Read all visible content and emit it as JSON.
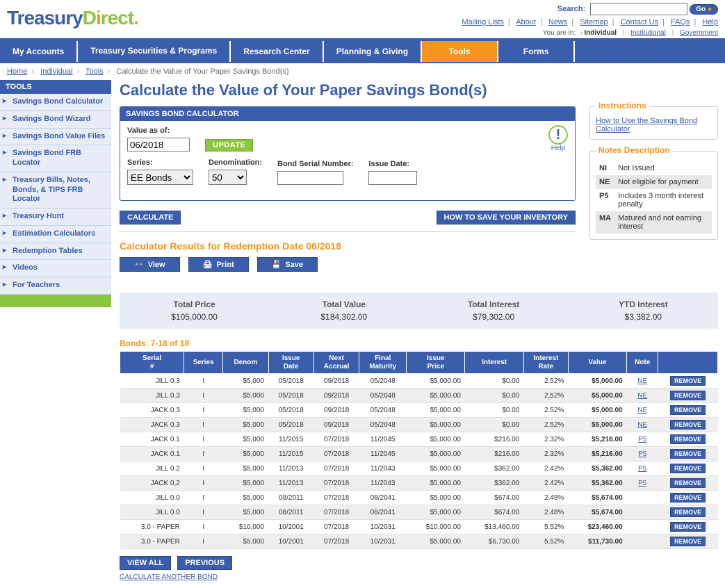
{
  "search": {
    "label": "Search:",
    "go": "Go"
  },
  "toplinks": [
    "Mailing Lists",
    "About",
    "News",
    "Sitemap",
    "Contact Us",
    "FAQs",
    "Help"
  ],
  "youarein": {
    "label": "You are in:",
    "current": "Individual",
    "others": [
      "Institutional",
      "Government"
    ]
  },
  "nav": [
    "My Accounts",
    "Treasury Securities & Programs",
    "Research Center",
    "Planning & Giving",
    "Tools",
    "Forms"
  ],
  "nav_active": 4,
  "breadcrumb": {
    "links": [
      "Home",
      "Individual",
      "Tools"
    ],
    "current": "Calculate the Value of Your Paper Savings Bond(s)"
  },
  "sidebar": {
    "title": "TOOLS",
    "items": [
      "Savings Bond Calculator",
      "Savings Bond Wizard",
      "Savings Bond Value Files",
      "Savings Bond FRB Locator",
      "Treasury Bills, Notes, Bonds, & TIPS FRB Locator",
      "Treasury Hunt",
      "Estimation Calculators",
      "Redemption Tables",
      "Videos",
      "For Teachers"
    ]
  },
  "page_title": "Calculate the Value of Your Paper Savings Bond(s)",
  "calc": {
    "header": "SAVINGS BOND CALCULATOR",
    "value_as_of_label": "Value as of:",
    "value_as_of": "06/2018",
    "update_btn": "UPDATE",
    "series_label": "Series:",
    "series_value": "EE Bonds",
    "denom_label": "Denomination:",
    "denom_value": "50",
    "serial_label": "Bond Serial Number:",
    "serial_value": "",
    "issue_label": "Issue Date:",
    "issue_value": "",
    "calculate_btn": "CALCULATE",
    "howto_btn": "HOW TO SAVE YOUR INVENTORY",
    "help_label": "Help"
  },
  "results_title": "Calculator Results for Redemption Date 06/2018",
  "tools": {
    "view": "View",
    "print": "Print",
    "save": "Save"
  },
  "instructions": {
    "title": "Instructions",
    "link": "How to Use the Savings Bond Calculator"
  },
  "notes": {
    "title": "Notes Description",
    "rows": [
      {
        "code": "NI",
        "desc": "Not Issued"
      },
      {
        "code": "NE",
        "desc": "Not eligible for payment"
      },
      {
        "code": "P5",
        "desc": "Includes 3 month interest penalty"
      },
      {
        "code": "MA",
        "desc": "Matured and not earning interest"
      }
    ]
  },
  "totals": {
    "headers": [
      "Total Price",
      "Total Value",
      "Total Interest",
      "YTD Interest"
    ],
    "values": [
      "$105,000.00",
      "$184,302.00",
      "$79,302.00",
      "$3,382.00"
    ]
  },
  "bonds_count": "Bonds: 7-18 of 18",
  "bond_headers": [
    "Serial #",
    "Series",
    "Denom",
    "Issue Date",
    "Next Accrual",
    "Final Maturity",
    "Issue Price",
    "Interest",
    "Interest Rate",
    "Value",
    "Note",
    ""
  ],
  "bonds": [
    {
      "serial": "JILL 0.3",
      "series": "I",
      "denom": "$5,000",
      "issue": "05/2018",
      "next": "09/2018",
      "final": "05/2048",
      "price": "$5,000.00",
      "interest": "$0.00",
      "rate": "2.52%",
      "value": "$5,000.00",
      "note": "NE"
    },
    {
      "serial": "JILL 0.3",
      "series": "I",
      "denom": "$5,000",
      "issue": "05/2018",
      "next": "09/2018",
      "final": "05/2048",
      "price": "$5,000.00",
      "interest": "$0.00",
      "rate": "2.52%",
      "value": "$5,000.00",
      "note": "NE"
    },
    {
      "serial": "JACK 0.3",
      "series": "I",
      "denom": "$5,000",
      "issue": "05/2018",
      "next": "09/2018",
      "final": "05/2048",
      "price": "$5,000.00",
      "interest": "$0.00",
      "rate": "2.52%",
      "value": "$5,000.00",
      "note": "NE"
    },
    {
      "serial": "JACK 0.3",
      "series": "I",
      "denom": "$5,000",
      "issue": "05/2018",
      "next": "09/2018",
      "final": "05/2048",
      "price": "$5,000.00",
      "interest": "$0.00",
      "rate": "2.52%",
      "value": "$5,000.00",
      "note": "NE"
    },
    {
      "serial": "JACK 0.1",
      "series": "I",
      "denom": "$5,000",
      "issue": "11/2015",
      "next": "07/2018",
      "final": "11/2045",
      "price": "$5,000.00",
      "interest": "$216.00",
      "rate": "2.32%",
      "value": "$5,216.00",
      "note": "P5"
    },
    {
      "serial": "JACK 0.1",
      "series": "I",
      "denom": "$5,000",
      "issue": "11/2015",
      "next": "07/2018",
      "final": "11/2045",
      "price": "$5,000.00",
      "interest": "$216.00",
      "rate": "2.32%",
      "value": "$5,216.00",
      "note": "P5"
    },
    {
      "serial": "JILL 0.2",
      "series": "I",
      "denom": "$5,000",
      "issue": "11/2013",
      "next": "07/2018",
      "final": "11/2043",
      "price": "$5,000.00",
      "interest": "$362.00",
      "rate": "2.42%",
      "value": "$5,362.00",
      "note": "P5"
    },
    {
      "serial": "JACK 0,2",
      "series": "I",
      "denom": "$5,000",
      "issue": "11/2013",
      "next": "07/2018",
      "final": "11/2043",
      "price": "$5,000.00",
      "interest": "$362.00",
      "rate": "2.42%",
      "value": "$5,362.00",
      "note": "P5"
    },
    {
      "serial": "JILL 0.0",
      "series": "I",
      "denom": "$5,000",
      "issue": "08/2011",
      "next": "07/2018",
      "final": "08/2041",
      "price": "$5,000.00",
      "interest": "$674.00",
      "rate": "2.48%",
      "value": "$5,674.00",
      "note": ""
    },
    {
      "serial": "JILL 0.0",
      "series": "I",
      "denom": "$5,000",
      "issue": "08/2011",
      "next": "07/2018",
      "final": "08/2041",
      "price": "$5,000.00",
      "interest": "$674.00",
      "rate": "2.48%",
      "value": "$5,674.00",
      "note": ""
    },
    {
      "serial": "3.0 - PAPER",
      "series": "I",
      "denom": "$10,000",
      "issue": "10/2001",
      "next": "07/2018",
      "final": "10/2031",
      "price": "$10,000.00",
      "interest": "$13,460.00",
      "rate": "5.52%",
      "value": "$23,460.00",
      "note": ""
    },
    {
      "serial": "3.0 - PAPER",
      "series": "I",
      "denom": "$5,000",
      "issue": "10/2001",
      "next": "07/2018",
      "final": "10/2031",
      "price": "$5,000.00",
      "interest": "$6,730.00",
      "rate": "5.52%",
      "value": "$11,730.00",
      "note": ""
    }
  ],
  "remove_label": "REMOVE",
  "pager": {
    "view_all": "VIEW ALL",
    "previous": "PREVIOUS"
  },
  "calc_another": "CALCULATE ANOTHER BOND"
}
